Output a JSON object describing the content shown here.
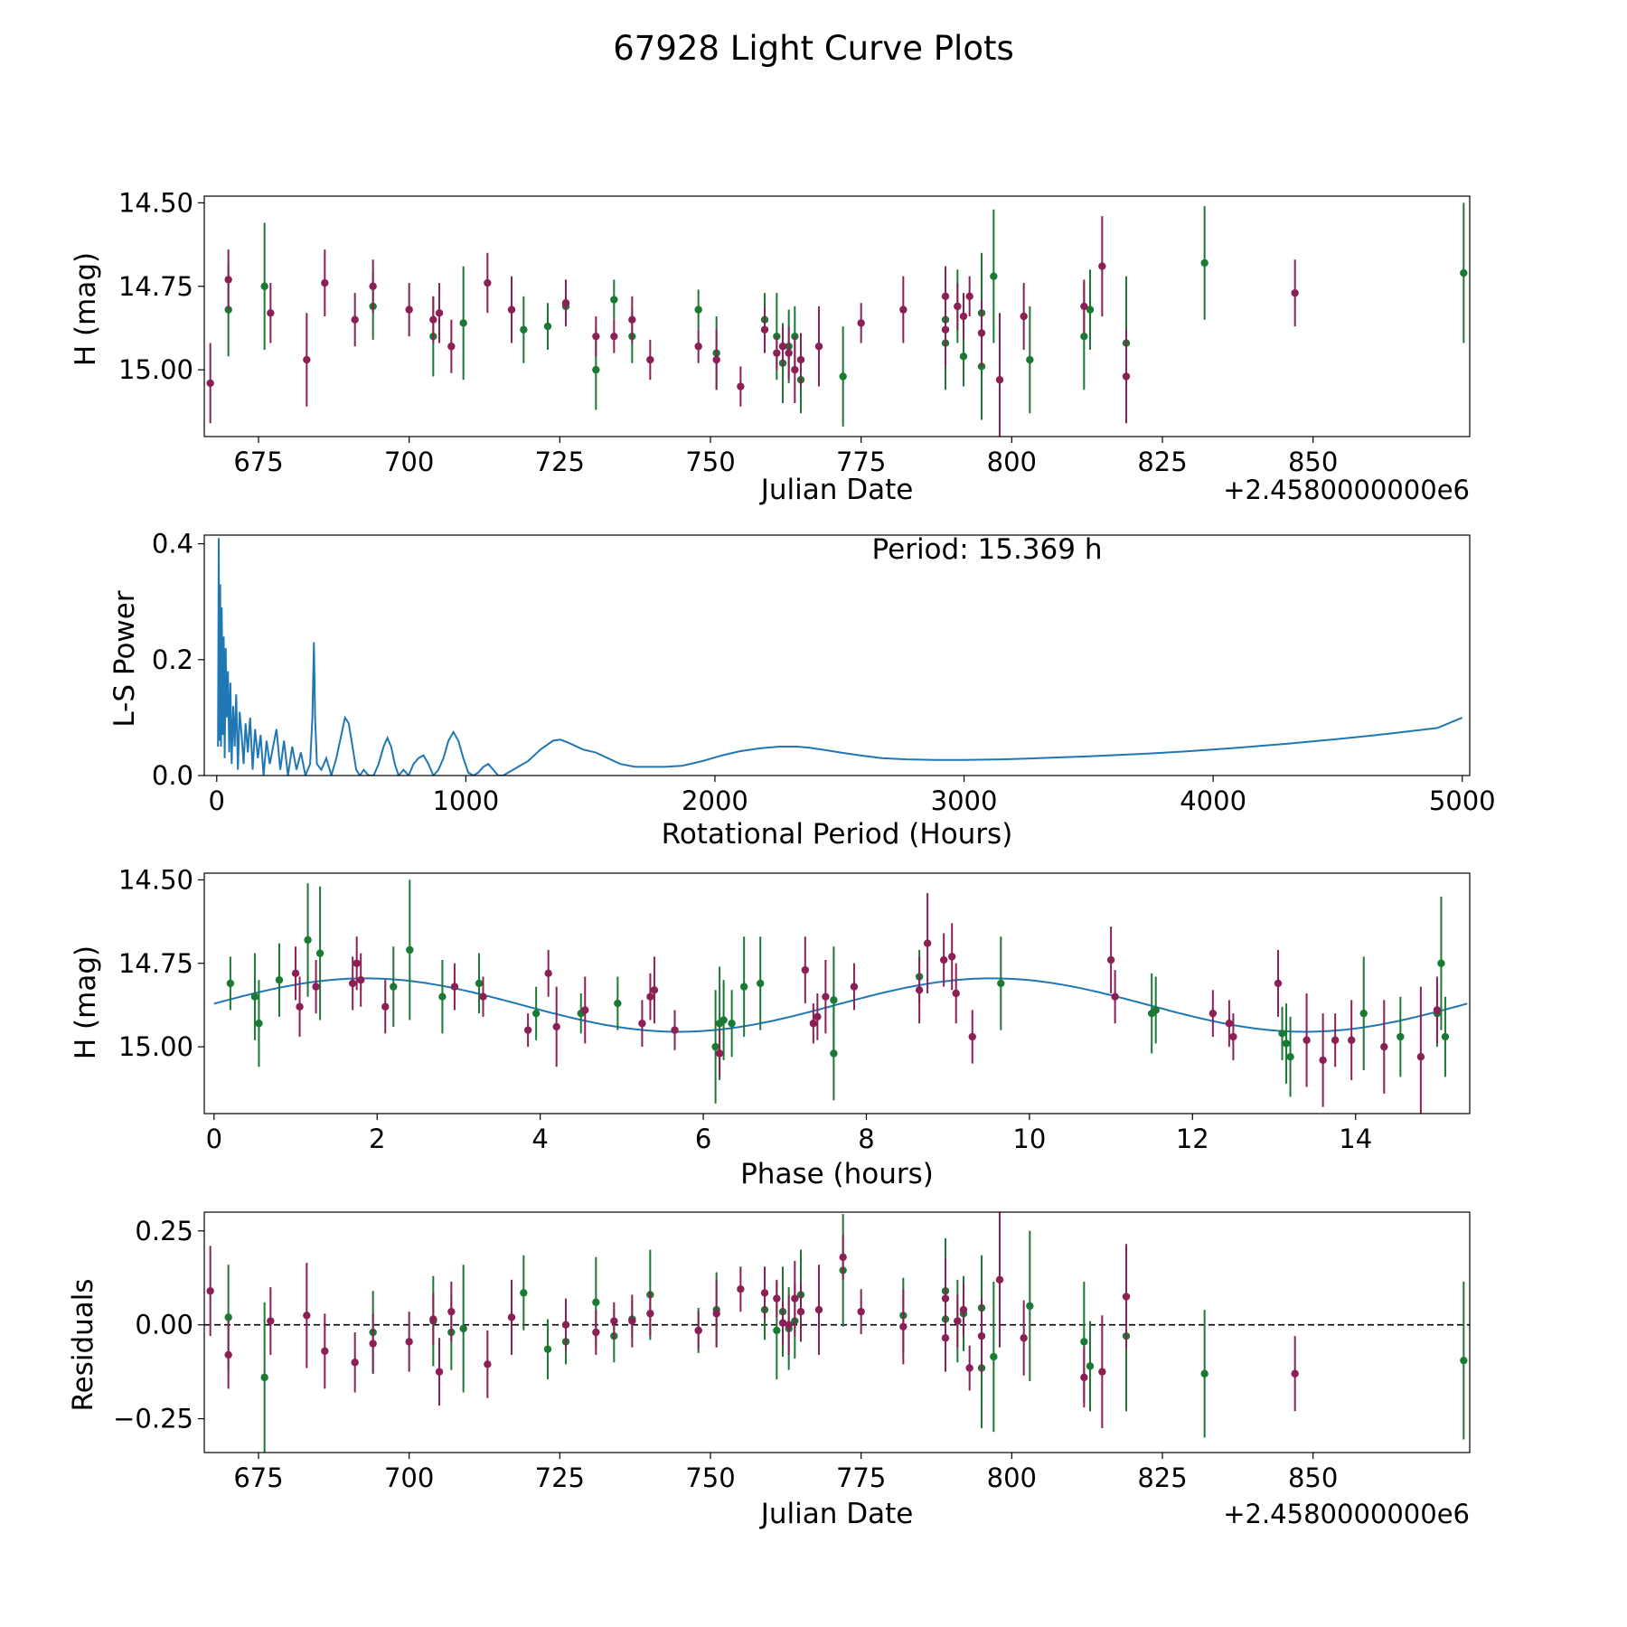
{
  "title": "67928 Light Curve Plots",
  "colors": {
    "g_band": "#1a7a33",
    "r_band": "#8c1f55",
    "curve": "#1f77b4"
  },
  "chart_data": [
    {
      "type": "scatter",
      "name": "lightcurve",
      "xlabel": "Julian Date",
      "ylabel": "H (mag)",
      "offset_text": "+2.4580000000e6",
      "xlim": [
        666,
        876
      ],
      "ylim": [
        14.48,
        15.2
      ],
      "invert_y": true,
      "xticks": [
        675,
        700,
        725,
        750,
        775,
        800,
        825,
        850
      ],
      "yticks": [
        14.5,
        14.75,
        15.0
      ],
      "ytick_labels": [
        "14.50",
        "14.75",
        "15.00"
      ],
      "series": [
        {
          "name": "g",
          "color": "#1a7a33",
          "x": [
            670,
            676,
            694,
            704,
            709,
            719,
            723,
            726,
            731,
            734,
            737,
            748,
            751,
            759,
            761,
            762,
            763,
            764,
            765,
            772,
            789,
            789,
            791,
            792,
            795,
            795,
            797,
            803,
            812,
            813,
            819,
            832,
            875
          ],
          "y": [
            14.82,
            14.75,
            14.81,
            14.9,
            14.86,
            14.88,
            14.87,
            14.81,
            15.0,
            14.79,
            14.9,
            14.82,
            14.95,
            14.85,
            14.9,
            14.98,
            14.93,
            14.9,
            15.03,
            15.02,
            14.92,
            14.85,
            14.81,
            14.96,
            14.83,
            14.99,
            14.72,
            14.97,
            14.9,
            14.82,
            14.92,
            14.68,
            14.71
          ],
          "err": [
            0.14,
            0.19,
            0.1,
            0.12,
            0.17,
            0.1,
            0.07,
            0.05,
            0.12,
            0.06,
            0.08,
            0.06,
            0.11,
            0.08,
            0.13,
            0.12,
            0.11,
            0.09,
            0.1,
            0.15,
            0.14,
            0.1,
            0.11,
            0.09,
            0.18,
            0.16,
            0.2,
            0.16,
            0.16,
            0.12,
            0.2,
            0.17,
            0.21
          ]
        },
        {
          "name": "r",
          "color": "#8c1f55",
          "x": [
            667,
            670,
            677,
            683,
            686,
            691,
            694,
            700,
            704,
            705,
            707,
            713,
            717,
            726,
            731,
            734,
            737,
            740,
            748,
            751,
            755,
            759,
            761,
            762,
            763,
            764,
            765,
            768,
            775,
            782,
            789,
            789,
            791,
            792,
            793,
            795,
            798,
            802,
            812,
            815,
            819,
            847
          ],
          "y": [
            15.04,
            14.73,
            14.83,
            14.97,
            14.74,
            14.85,
            14.75,
            14.82,
            14.85,
            14.83,
            14.93,
            14.74,
            14.82,
            14.8,
            14.9,
            14.9,
            14.85,
            14.97,
            14.93,
            14.97,
            15.05,
            14.88,
            14.95,
            14.93,
            14.95,
            15.0,
            14.97,
            14.93,
            14.86,
            14.82,
            14.88,
            14.78,
            14.81,
            14.84,
            14.78,
            14.89,
            15.03,
            14.84,
            14.81,
            14.69,
            15.02,
            14.77
          ],
          "err": [
            0.12,
            0.09,
            0.09,
            0.14,
            0.1,
            0.08,
            0.08,
            0.08,
            0.07,
            0.09,
            0.08,
            0.09,
            0.1,
            0.07,
            0.06,
            0.05,
            0.07,
            0.06,
            0.05,
            0.09,
            0.06,
            0.07,
            0.05,
            0.06,
            0.08,
            0.1,
            0.08,
            0.12,
            0.06,
            0.1,
            0.11,
            0.09,
            0.07,
            0.07,
            0.06,
            0.1,
            0.2,
            0.1,
            0.08,
            0.15,
            0.14,
            0.1
          ]
        }
      ]
    },
    {
      "type": "line",
      "name": "periodogram",
      "xlabel": "Rotational Period (Hours)",
      "ylabel": "L-S Power",
      "annotation": "Period: 15.369 h",
      "xlim": [
        -50,
        5030
      ],
      "ylim": [
        0,
        0.415
      ],
      "xticks": [
        0,
        1000,
        2000,
        3000,
        4000,
        5000
      ],
      "yticks": [
        0.0,
        0.2,
        0.4
      ],
      "ytick_labels": [
        "0.0",
        "0.2",
        "0.4"
      ],
      "x": [
        5,
        8,
        11,
        14,
        17,
        20,
        24,
        28,
        32,
        36,
        40,
        45,
        50,
        55,
        60,
        66,
        72,
        78,
        85,
        92,
        100,
        108,
        116,
        125,
        134,
        144,
        154,
        165,
        176,
        188,
        200,
        213,
        226,
        240,
        255,
        270,
        286,
        303,
        320,
        338,
        356,
        375,
        384,
        390,
        395,
        402,
        420,
        440,
        460,
        480,
        500,
        515,
        530,
        545,
        560,
        575,
        590,
        610,
        630,
        650,
        670,
        685,
        700,
        715,
        730,
        750,
        770,
        790,
        810,
        830,
        850,
        870,
        890,
        910,
        930,
        950,
        970,
        990,
        1010,
        1030,
        1050,
        1070,
        1090,
        1110,
        1130,
        1150,
        1170,
        1190,
        1210,
        1250,
        1300,
        1350,
        1380,
        1420,
        1470,
        1520,
        1570,
        1620,
        1680,
        1740,
        1800,
        1870,
        1950,
        2030,
        2100,
        2180,
        2260,
        2330,
        2380,
        2430,
        2500,
        2580,
        2670,
        2770,
        2880,
        3000,
        3150,
        3300,
        3500,
        3700,
        3900,
        4100,
        4300,
        4500,
        4700,
        4900,
        5000
      ],
      "y": [
        0.05,
        0.41,
        0.06,
        0.33,
        0.05,
        0.29,
        0.07,
        0.24,
        0.03,
        0.22,
        0.1,
        0.18,
        0.04,
        0.16,
        0.02,
        0.12,
        0.05,
        0.14,
        0.01,
        0.11,
        0.07,
        0.02,
        0.09,
        0.04,
        0.1,
        0.01,
        0.08,
        0.03,
        0.07,
        0.0,
        0.06,
        0.02,
        0.05,
        0.08,
        0.01,
        0.06,
        0.0,
        0.05,
        0.01,
        0.04,
        0.0,
        0.02,
        0.1,
        0.23,
        0.1,
        0.02,
        0.01,
        0.03,
        0.0,
        0.03,
        0.07,
        0.1,
        0.09,
        0.05,
        0.01,
        0.0,
        0.01,
        0.0,
        0.0,
        0.02,
        0.05,
        0.065,
        0.05,
        0.02,
        0.0,
        0.01,
        0.0,
        0.02,
        0.03,
        0.035,
        0.02,
        0.0,
        0.01,
        0.03,
        0.06,
        0.075,
        0.06,
        0.03,
        0.005,
        0.0,
        0.005,
        0.015,
        0.02,
        0.01,
        0.0,
        0.0,
        0.005,
        0.01,
        0.015,
        0.025,
        0.045,
        0.06,
        0.062,
        0.055,
        0.045,
        0.04,
        0.03,
        0.02,
        0.015,
        0.015,
        0.015,
        0.017,
        0.025,
        0.035,
        0.042,
        0.047,
        0.05,
        0.05,
        0.048,
        0.045,
        0.04,
        0.035,
        0.03,
        0.028,
        0.027,
        0.027,
        0.028,
        0.03,
        0.033,
        0.037,
        0.042,
        0.048,
        0.055,
        0.063,
        0.072,
        0.082,
        0.1
      ]
    },
    {
      "type": "scatter",
      "name": "phased",
      "xlabel": "Phase (hours)",
      "ylabel": "H (mag)",
      "xlim": [
        -0.12,
        15.4
      ],
      "ylim": [
        14.48,
        15.2
      ],
      "invert_y": true,
      "xticks": [
        0,
        2,
        4,
        6,
        8,
        10,
        12,
        14
      ],
      "yticks": [
        14.5,
        14.75,
        15.0
      ],
      "ytick_labels": [
        "14.50",
        "14.75",
        "15.00"
      ],
      "model": {
        "mean": 14.875,
        "amplitude": 0.08,
        "period": 7.6845,
        "phase_max": 5.7
      },
      "series": [
        {
          "name": "g",
          "color": "#1a7a33",
          "x": [
            0.2,
            0.5,
            0.55,
            0.8,
            1.15,
            1.3,
            2.2,
            2.4,
            2.8,
            3.25,
            3.95,
            4.5,
            4.95,
            6.15,
            6.2,
            6.25,
            6.35,
            6.5,
            6.7,
            7.6,
            7.6,
            8.65,
            9.65,
            11.5,
            11.55,
            13.1,
            13.15,
            13.2,
            14.1,
            14.55,
            15.0,
            15.05,
            15.1
          ],
          "y": [
            14.81,
            14.85,
            14.93,
            14.8,
            14.68,
            14.72,
            14.82,
            14.71,
            14.85,
            14.81,
            14.9,
            14.9,
            14.87,
            15.0,
            14.93,
            14.92,
            14.93,
            14.82,
            14.81,
            14.86,
            15.02,
            14.79,
            14.81,
            14.9,
            14.89,
            14.96,
            14.99,
            15.03,
            14.9,
            14.97,
            14.9,
            14.75,
            14.97
          ],
          "err": [
            0.08,
            0.13,
            0.13,
            0.11,
            0.17,
            0.2,
            0.12,
            0.21,
            0.11,
            0.09,
            0.08,
            0.06,
            0.08,
            0.17,
            0.17,
            0.12,
            0.1,
            0.15,
            0.14,
            0.16,
            0.14,
            0.08,
            0.14,
            0.12,
            0.1,
            0.08,
            0.12,
            0.12,
            0.17,
            0.12,
            0.1,
            0.2,
            0.12
          ]
        },
        {
          "name": "r",
          "color": "#8c1f55",
          "x": [
            1.05,
            1.0,
            1.25,
            1.7,
            1.75,
            1.8,
            2.1,
            2.95,
            3.3,
            3.85,
            4.1,
            4.2,
            4.55,
            5.25,
            5.35,
            5.4,
            5.65,
            6.2,
            7.25,
            7.35,
            7.4,
            7.5,
            7.85,
            8.65,
            8.75,
            8.95,
            9.05,
            9.1,
            9.3,
            11.0,
            11.05,
            12.25,
            12.45,
            12.5,
            13.05,
            13.4,
            13.6,
            13.75,
            13.95,
            14.35,
            14.8,
            15.0
          ],
          "y": [
            14.88,
            14.78,
            14.82,
            14.81,
            14.75,
            14.8,
            14.88,
            14.82,
            14.85,
            14.95,
            14.78,
            14.94,
            14.89,
            14.93,
            14.85,
            14.83,
            14.95,
            15.02,
            14.77,
            14.93,
            14.91,
            14.85,
            14.82,
            14.83,
            14.69,
            14.74,
            14.73,
            14.84,
            14.97,
            14.74,
            14.85,
            14.9,
            14.93,
            14.97,
            14.81,
            14.98,
            15.04,
            14.98,
            14.98,
            15.0,
            15.03,
            14.89
          ],
          "err": [
            0.09,
            0.08,
            0.08,
            0.08,
            0.08,
            0.08,
            0.08,
            0.07,
            0.06,
            0.05,
            0.07,
            0.12,
            0.1,
            0.07,
            0.07,
            0.1,
            0.06,
            0.07,
            0.1,
            0.06,
            0.07,
            0.11,
            0.07,
            0.1,
            0.15,
            0.08,
            0.1,
            0.09,
            0.08,
            0.1,
            0.08,
            0.07,
            0.07,
            0.07,
            0.1,
            0.14,
            0.14,
            0.08,
            0.12,
            0.14,
            0.21,
            0.1
          ]
        }
      ]
    },
    {
      "type": "scatter",
      "name": "residuals",
      "xlabel": "Julian Date",
      "ylabel": "Residuals",
      "offset_text": "+2.4580000000e6",
      "xlim": [
        666,
        876
      ],
      "ylim": [
        -0.34,
        0.3
      ],
      "xticks": [
        675,
        700,
        725,
        750,
        775,
        800,
        825,
        850
      ],
      "yticks": [
        -0.25,
        0.0,
        0.25
      ],
      "ytick_labels": [
        "−0.25",
        "0.00",
        "0.25"
      ],
      "zero_line": true,
      "series": [
        {
          "name": "g",
          "color": "#1a7a33",
          "x": [
            670,
            676,
            694,
            704,
            707,
            709,
            719,
            723,
            726,
            731,
            734,
            737,
            740,
            748,
            751,
            759,
            761,
            762,
            763,
            764,
            765,
            772,
            782,
            789,
            789,
            791,
            792,
            795,
            795,
            797,
            803,
            812,
            813,
            819,
            832,
            875
          ],
          "y": [
            0.02,
            -0.14,
            -0.02,
            0.01,
            -0.02,
            -0.01,
            0.085,
            -0.065,
            -0.045,
            0.06,
            -0.03,
            0.015,
            0.08,
            -0.015,
            0.04,
            0.04,
            -0.015,
            0.035,
            -0.01,
            0.01,
            0.08,
            0.145,
            0.025,
            0.09,
            0.015,
            0.01,
            0.03,
            -0.115,
            0.045,
            -0.085,
            0.05,
            -0.045,
            -0.11,
            -0.03,
            -0.13,
            -0.095
          ],
          "err": [
            0.14,
            0.2,
            0.11,
            0.12,
            0.1,
            0.17,
            0.1,
            0.08,
            0.06,
            0.12,
            0.07,
            0.05,
            0.12,
            0.06,
            0.1,
            0.08,
            0.13,
            0.12,
            0.11,
            0.1,
            0.12,
            0.15,
            0.1,
            0.14,
            0.12,
            0.11,
            0.1,
            0.16,
            0.14,
            0.2,
            0.2,
            0.16,
            0.12,
            0.2,
            0.17,
            0.21
          ]
        },
        {
          "name": "r",
          "color": "#8c1f55",
          "x": [
            667,
            670,
            677,
            683,
            686,
            691,
            694,
            700,
            704,
            705,
            707,
            713,
            717,
            726,
            731,
            734,
            737,
            740,
            748,
            751,
            755,
            759,
            761,
            762,
            763,
            764,
            765,
            768,
            772,
            775,
            782,
            789,
            789,
            791,
            792,
            793,
            795,
            798,
            802,
            812,
            815,
            819,
            847
          ],
          "y": [
            0.09,
            -0.08,
            0.01,
            0.025,
            -0.07,
            -0.1,
            -0.05,
            -0.045,
            0.015,
            -0.125,
            0.035,
            -0.105,
            0.02,
            0.0,
            -0.02,
            0.01,
            0.01,
            0.03,
            -0.015,
            0.03,
            0.095,
            0.085,
            0.07,
            0.005,
            0.0,
            0.07,
            0.035,
            0.04,
            0.18,
            0.035,
            -0.005,
            0.07,
            -0.035,
            0.01,
            0.04,
            -0.115,
            -0.03,
            0.12,
            -0.035,
            -0.14,
            -0.125,
            0.075,
            -0.13
          ],
          "err": [
            0.12,
            0.09,
            0.09,
            0.14,
            0.1,
            0.08,
            0.08,
            0.08,
            0.07,
            0.09,
            0.08,
            0.09,
            0.1,
            0.07,
            0.06,
            0.05,
            0.07,
            0.06,
            0.05,
            0.09,
            0.06,
            0.07,
            0.05,
            0.06,
            0.08,
            0.1,
            0.08,
            0.12,
            0.06,
            0.06,
            0.1,
            0.11,
            0.09,
            0.07,
            0.07,
            0.06,
            0.1,
            0.18,
            0.1,
            0.08,
            0.15,
            0.14,
            0.1
          ]
        }
      ]
    }
  ]
}
